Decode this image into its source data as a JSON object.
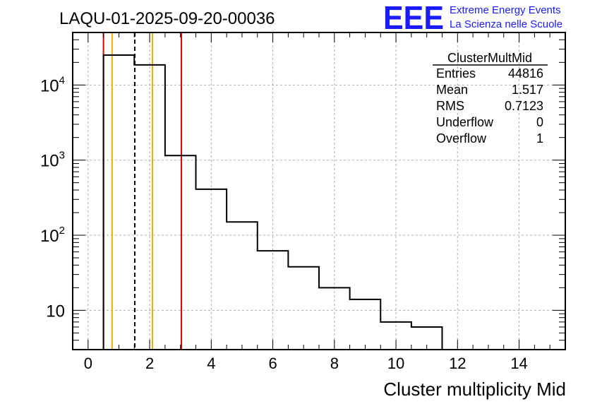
{
  "title": "LAQU-01-2025-09-20-00036",
  "logo": {
    "letters": "EEE",
    "line1": "Extreme Energy Events",
    "line2": "La Scienza nelle Scuole",
    "color": "#1a1aff"
  },
  "stats_box": {
    "name": "ClusterMultMid",
    "rows": [
      {
        "label": "Entries",
        "value": "44816"
      },
      {
        "label": "Mean",
        "value": "1.517"
      },
      {
        "label": "RMS",
        "value": "0.7123"
      },
      {
        "label": "Underflow",
        "value": "0"
      },
      {
        "label": "Overflow",
        "value": "1"
      }
    ]
  },
  "chart_data": {
    "type": "histogram",
    "title": "LAQU-01-2025-09-20-00036",
    "xlabel": "Cluster multiplicity Mid",
    "ylabel": "",
    "y_scale": "log",
    "xlim": [
      -0.5,
      15.5
    ],
    "ylim": [
      3,
      50000
    ],
    "grid": true,
    "x_ticks": [
      0,
      2,
      4,
      6,
      8,
      10,
      12,
      14
    ],
    "x_tick_labels": [
      "0",
      "2",
      "4",
      "6",
      "8",
      "10",
      "12",
      "14"
    ],
    "y_ticks": [
      10,
      100,
      1000,
      10000
    ],
    "y_tick_labels": [
      {
        "base": "10",
        "exp": ""
      },
      {
        "base": "10",
        "exp": "2"
      },
      {
        "base": "10",
        "exp": "3"
      },
      {
        "base": "10",
        "exp": "4"
      }
    ],
    "bins": [
      {
        "lo": 0.5,
        "hi": 1.5,
        "count": 25000
      },
      {
        "lo": 1.5,
        "hi": 2.5,
        "count": 18500
      },
      {
        "lo": 2.5,
        "hi": 3.5,
        "count": 1150
      },
      {
        "lo": 3.5,
        "hi": 4.5,
        "count": 410
      },
      {
        "lo": 4.5,
        "hi": 5.5,
        "count": 150
      },
      {
        "lo": 5.5,
        "hi": 6.5,
        "count": 62
      },
      {
        "lo": 6.5,
        "hi": 7.5,
        "count": 38
      },
      {
        "lo": 7.5,
        "hi": 8.5,
        "count": 20
      },
      {
        "lo": 8.5,
        "hi": 9.5,
        "count": 14
      },
      {
        "lo": 9.5,
        "hi": 10.5,
        "count": 7
      },
      {
        "lo": 10.5,
        "hi": 11.5,
        "count": 6
      }
    ],
    "markers": [
      {
        "name": "red-line-low",
        "x": 0.5,
        "color": "#e00000",
        "style": "solid"
      },
      {
        "name": "orange-line-low",
        "x": 0.78,
        "color": "#f0b000",
        "style": "solid"
      },
      {
        "name": "mean-line",
        "x": 1.517,
        "color": "#000000",
        "style": "dashed"
      },
      {
        "name": "orange-line-high",
        "x": 2.09,
        "color": "#f0b000",
        "style": "solid"
      },
      {
        "name": "red-line-high",
        "x": 3.03,
        "color": "#e00000",
        "style": "solid"
      }
    ]
  }
}
